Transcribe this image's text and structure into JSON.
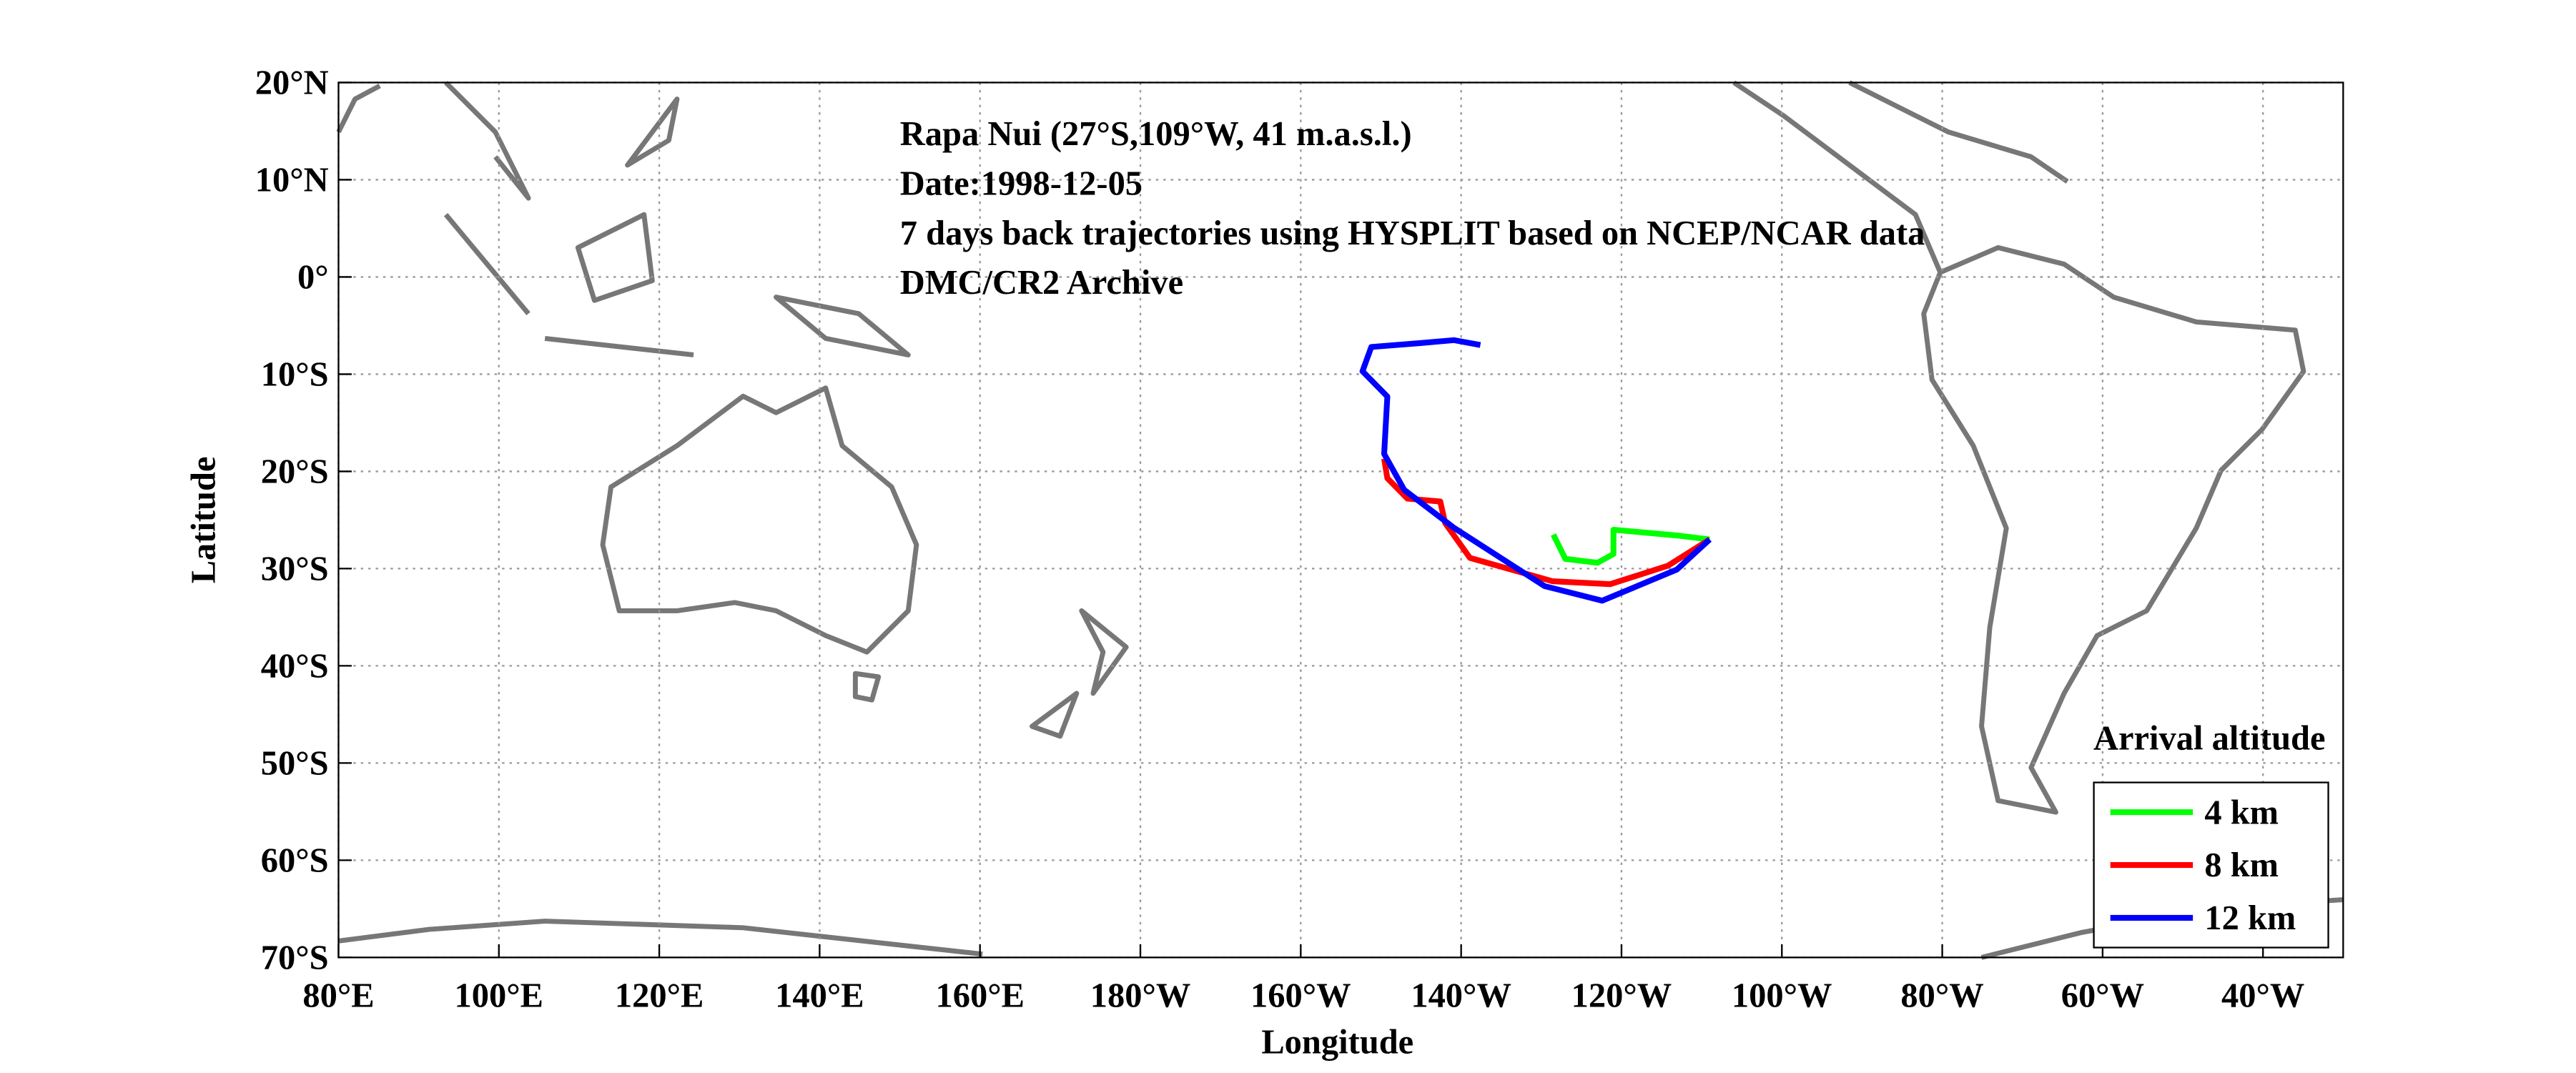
{
  "chart_data": {
    "type": "line",
    "annotations": [
      "Rapa Nui (27°S,109°W, 41 m.a.s.l.)",
      "Date:1998-12-05",
      "7 days back trajectories using HYSPLIT based on NCEP/NCAR data",
      "DMC/CR2 Archive"
    ],
    "xlabel": "Longitude",
    "ylabel": "Latitude",
    "xlim": [
      80,
      330
    ],
    "ylim": [
      -70,
      20
    ],
    "xticks": [
      {
        "value": 80,
        "label": "80°E"
      },
      {
        "value": 100,
        "label": "100°E"
      },
      {
        "value": 120,
        "label": "120°E"
      },
      {
        "value": 140,
        "label": "140°E"
      },
      {
        "value": 160,
        "label": "160°E"
      },
      {
        "value": 180,
        "label": "180°W"
      },
      {
        "value": 200,
        "label": "160°W"
      },
      {
        "value": 220,
        "label": "140°W"
      },
      {
        "value": 240,
        "label": "120°W"
      },
      {
        "value": 260,
        "label": "100°W"
      },
      {
        "value": 280,
        "label": "80°W"
      },
      {
        "value": 300,
        "label": "60°W"
      },
      {
        "value": 320,
        "label": "40°W"
      }
    ],
    "yticks": [
      {
        "value": 20,
        "label": "20°N"
      },
      {
        "value": 10,
        "label": "10°N"
      },
      {
        "value": 0,
        "label": "0°"
      },
      {
        "value": -10,
        "label": "10°S"
      },
      {
        "value": -20,
        "label": "20°S"
      },
      {
        "value": -30,
        "label": "30°S"
      },
      {
        "value": -40,
        "label": "40°S"
      },
      {
        "value": -50,
        "label": "50°S"
      },
      {
        "value": -60,
        "label": "60°S"
      },
      {
        "value": -70,
        "label": "70°S"
      }
    ],
    "grid": true,
    "legend_title": "Arrival altitude",
    "legend": "lower right",
    "series": [
      {
        "name": "4 km",
        "color": "#00ff00",
        "x": [
          251,
          247,
          239,
          239,
          237,
          233,
          231.5
        ],
        "values": [
          -27,
          -26.6,
          -26,
          -28.5,
          -29.4,
          -29,
          -26.5
        ]
      },
      {
        "name": "8 km",
        "color": "#ff0000",
        "x": [
          251,
          245.8,
          238.6,
          231.4,
          221.1,
          218,
          217.4,
          213.3,
          210.8,
          210.4
        ],
        "values": [
          -27,
          -29.7,
          -31.6,
          -31.3,
          -28.9,
          -25.3,
          -23.1,
          -22.8,
          -20.7,
          -18.7
        ]
      },
      {
        "name": "12 km",
        "color": "#0000ff",
        "x": [
          251,
          246.9,
          237.6,
          230.4,
          219.1,
          212.9,
          210.4,
          210.8,
          207.7,
          208.8,
          214.9,
          219.1,
          222.4
        ],
        "values": [
          -27,
          -30.1,
          -33.3,
          -31.8,
          -25.8,
          -21.9,
          -18.2,
          -12.3,
          -9.7,
          -7.2,
          -6.8,
          -6.5,
          -7
        ]
      }
    ]
  }
}
